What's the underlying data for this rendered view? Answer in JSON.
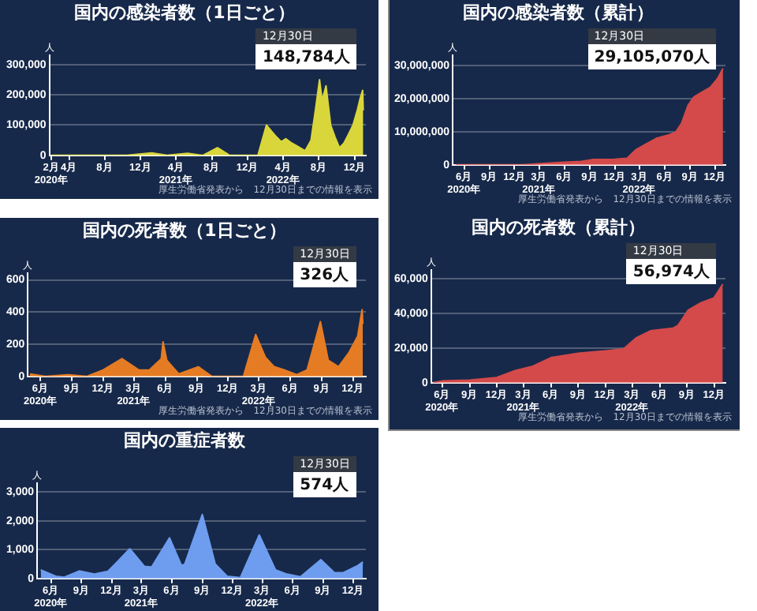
{
  "chart_data": [
    {
      "type": "area",
      "title": "国内の感染者数（1日ごと）",
      "ylabel": "人",
      "color": "#d9d63c",
      "x": [
        "2020-02-01",
        "2020-04-10",
        "2020-06-01",
        "2020-08-07",
        "2020-10-15",
        "2021-01-08",
        "2021-03-01",
        "2021-05-10",
        "2021-07-01",
        "2021-08-20",
        "2021-10-01",
        "2021-12-01",
        "2022-01-05",
        "2022-02-03",
        "2022-02-20",
        "2022-03-10",
        "2022-03-25",
        "2022-04-10",
        "2022-05-01",
        "2022-05-20",
        "2022-06-15",
        "2022-07-05",
        "2022-07-20",
        "2022-08-03",
        "2022-08-12",
        "2022-08-25",
        "2022-09-10",
        "2022-09-25",
        "2022-10-10",
        "2022-10-25",
        "2022-11-10",
        "2022-11-25",
        "2022-12-10",
        "2022-12-20",
        "2022-12-28",
        "2022-12-30"
      ],
      "values": [
        0,
        0,
        0,
        0,
        0,
        8000,
        0,
        6500,
        0,
        25000,
        0,
        0,
        0,
        100000,
        80000,
        60000,
        45000,
        55000,
        40000,
        30000,
        15000,
        50000,
        150000,
        250000,
        180000,
        230000,
        100000,
        60000,
        25000,
        40000,
        70000,
        100000,
        150000,
        190000,
        215000,
        148784
      ],
      "xlim": [
        "2020-01-25",
        "2023-01-08"
      ],
      "xticks": [
        {
          "value": "2020-02-01",
          "label": "2月\n2020年"
        },
        {
          "value": "2020-04-01",
          "label": "4月"
        },
        {
          "value": "2020-08-01",
          "label": "8月"
        },
        {
          "value": "2020-12-01",
          "label": "12月"
        },
        {
          "value": "2021-04-01",
          "label": "4月\n2021年"
        },
        {
          "value": "2021-08-01",
          "label": "8月"
        },
        {
          "value": "2021-12-01",
          "label": "12月"
        },
        {
          "value": "2022-04-01",
          "label": "4月\n2022年"
        },
        {
          "value": "2022-08-01",
          "label": "8月"
        },
        {
          "value": "2022-12-01",
          "label": "12月"
        }
      ],
      "ylim": [
        0,
        330000
      ],
      "yticks": [
        {
          "value": 0,
          "label": "0"
        },
        {
          "value": 100000,
          "label": "100,000"
        },
        {
          "value": 200000,
          "label": "200,000"
        },
        {
          "value": 300000,
          "label": "300,000"
        }
      ],
      "grid": "y",
      "annotations": [
        "12月30日\n148,784人",
        "厚生労働省発表から　12月30日までの情報を表示"
      ]
    },
    {
      "type": "area",
      "title": "国内の感染者数（累計）",
      "ylabel": "人",
      "color": "#d44a4a",
      "x": [
        "2020-05-01",
        "2020-09-01",
        "2021-01-01",
        "2021-04-01",
        "2021-06-01",
        "2021-08-01",
        "2021-09-15",
        "2021-12-01",
        "2022-01-15",
        "2022-02-15",
        "2022-03-15",
        "2022-05-01",
        "2022-06-15",
        "2022-07-10",
        "2022-08-01",
        "2022-08-25",
        "2022-09-15",
        "2022-10-15",
        "2022-11-15",
        "2022-12-10",
        "2022-12-30"
      ],
      "values": [
        0,
        0,
        0,
        500000,
        800000,
        1000000,
        1600000,
        1700000,
        2000000,
        4500000,
        5800000,
        8000000,
        9000000,
        9800000,
        12500000,
        18000000,
        20500000,
        22000000,
        23500000,
        26000000,
        29105070
      ],
      "xlim": [
        "2020-04-20",
        "2023-01-08"
      ],
      "xticks": [
        {
          "value": "2020-06-01",
          "label": "6月\n2020年"
        },
        {
          "value": "2020-09-01",
          "label": "9月"
        },
        {
          "value": "2020-12-01",
          "label": "12月"
        },
        {
          "value": "2021-03-01",
          "label": "3月\n2021年"
        },
        {
          "value": "2021-06-01",
          "label": "6月"
        },
        {
          "value": "2021-09-01",
          "label": "9月"
        },
        {
          "value": "2021-12-01",
          "label": "12月"
        },
        {
          "value": "2022-03-01",
          "label": "3月\n2022年"
        },
        {
          "value": "2022-06-01",
          "label": "6月"
        },
        {
          "value": "2022-09-01",
          "label": "9月"
        },
        {
          "value": "2022-12-01",
          "label": "12月"
        }
      ],
      "ylim": [
        0,
        33000000
      ],
      "yticks": [
        {
          "value": 0,
          "label": "0"
        },
        {
          "value": 10000000,
          "label": "10,000,000"
        },
        {
          "value": 20000000,
          "label": "20,000,000"
        },
        {
          "value": 30000000,
          "label": "30,000,000"
        }
      ],
      "grid": "y",
      "annotations": [
        "12月30日\n29,105,070人",
        "厚生労働省発表から　12月30日までの情報を表示"
      ]
    },
    {
      "type": "area",
      "title": "国内の死者数（1日ごと）",
      "ylabel": "人",
      "color": "#e57c24",
      "x": [
        "2020-05-01",
        "2020-06-15",
        "2020-08-20",
        "2020-10-15",
        "2020-12-01",
        "2021-01-25",
        "2021-03-15",
        "2021-04-15",
        "2021-05-20",
        "2021-05-25",
        "2021-06-05",
        "2021-07-10",
        "2021-09-05",
        "2021-10-15",
        "2021-12-01",
        "2022-01-15",
        "2022-02-20",
        "2022-03-20",
        "2022-04-15",
        "2022-05-15",
        "2022-06-20",
        "2022-07-20",
        "2022-08-10",
        "2022-08-28",
        "2022-09-20",
        "2022-10-20",
        "2022-11-20",
        "2022-12-15",
        "2022-12-28",
        "2022-12-30"
      ],
      "values": [
        15,
        0,
        10,
        0,
        40,
        110,
        40,
        40,
        110,
        215,
        100,
        15,
        60,
        0,
        0,
        0,
        260,
        120,
        60,
        40,
        10,
        40,
        200,
        340,
        100,
        60,
        150,
        250,
        415,
        326
      ],
      "xlim": [
        "2020-04-25",
        "2023-01-08"
      ],
      "xticks": [
        {
          "value": "2020-06-01",
          "label": "6月\n2020年"
        },
        {
          "value": "2020-09-01",
          "label": "9月"
        },
        {
          "value": "2020-12-01",
          "label": "12月"
        },
        {
          "value": "2021-03-01",
          "label": "3月\n2021年"
        },
        {
          "value": "2021-06-01",
          "label": "6月"
        },
        {
          "value": "2021-09-01",
          "label": "9月"
        },
        {
          "value": "2021-12-01",
          "label": "12月"
        },
        {
          "value": "2022-03-01",
          "label": "3月\n2022年"
        },
        {
          "value": "2022-06-01",
          "label": "6月"
        },
        {
          "value": "2022-09-01",
          "label": "9月"
        },
        {
          "value": "2022-12-01",
          "label": "12月"
        }
      ],
      "ylim": [
        0,
        640
      ],
      "yticks": [
        0,
        200,
        400,
        600
      ],
      "grid": "y",
      "annotations": [
        "12月30日\n326人",
        "厚生労働省発表から　12月30日までの情報を表示"
      ]
    },
    {
      "type": "area",
      "title": "国内の死者数（累計）",
      "ylabel": "人",
      "color": "#d44a4a",
      "x": [
        "2020-05-01",
        "2020-06-01",
        "2020-09-01",
        "2020-12-01",
        "2021-02-01",
        "2021-04-01",
        "2021-06-01",
        "2021-09-01",
        "2021-12-01",
        "2022-01-31",
        "2022-03-15",
        "2022-05-01",
        "2022-07-15",
        "2022-08-01",
        "2022-09-05",
        "2022-10-15",
        "2022-11-30",
        "2022-12-30"
      ],
      "values": [
        0,
        1000,
        1500,
        3000,
        7000,
        9500,
        14500,
        17000,
        18400,
        19500,
        26000,
        30000,
        31500,
        33000,
        42000,
        46000,
        49000,
        56974
      ],
      "xlim": [
        "2020-04-25",
        "2023-01-08"
      ],
      "xticks": [
        {
          "value": "2020-06-01",
          "label": "6月\n2020年"
        },
        {
          "value": "2020-09-01",
          "label": "9月"
        },
        {
          "value": "2020-12-01",
          "label": "12月"
        },
        {
          "value": "2021-03-01",
          "label": "3月\n2021年"
        },
        {
          "value": "2021-06-01",
          "label": "6月"
        },
        {
          "value": "2021-09-01",
          "label": "9月"
        },
        {
          "value": "2021-12-01",
          "label": "12月"
        },
        {
          "value": "2022-03-01",
          "label": "3月\n2022年"
        },
        {
          "value": "2022-06-01",
          "label": "6月"
        },
        {
          "value": "2022-09-01",
          "label": "9月"
        },
        {
          "value": "2022-12-01",
          "label": "12月"
        }
      ],
      "ylim": [
        0,
        65000
      ],
      "yticks": [
        {
          "value": 0,
          "label": "0"
        },
        {
          "value": 20000,
          "label": "20,000"
        },
        {
          "value": 40000,
          "label": "40,000"
        },
        {
          "value": 60000,
          "label": "60,000"
        }
      ],
      "grid": "y",
      "annotations": [
        "12月30日\n56,974人",
        "厚生労働省発表から　12月30日までの情報を表示"
      ]
    },
    {
      "type": "area",
      "title": "国内の重症者数",
      "ylabel": "人",
      "color": "#6e9df0",
      "x": [
        "2020-05-01",
        "2020-06-15",
        "2020-07-10",
        "2020-08-25",
        "2020-10-10",
        "2020-11-20",
        "2020-12-20",
        "2021-01-25",
        "2021-03-10",
        "2021-04-01",
        "2021-05-25",
        "2021-06-30",
        "2021-07-10",
        "2021-09-01",
        "2021-10-10",
        "2021-11-15",
        "2021-12-25",
        "2022-02-20",
        "2022-04-10",
        "2022-05-15",
        "2022-06-25",
        "2022-08-25",
        "2022-10-05",
        "2022-11-01",
        "2022-12-15",
        "2022-12-30"
      ],
      "values": [
        300,
        80,
        40,
        260,
        150,
        250,
        600,
        1030,
        420,
        400,
        1410,
        450,
        500,
        2220,
        500,
        80,
        30,
        1510,
        300,
        150,
        60,
        650,
        200,
        200,
        450,
        574
      ],
      "xlim": [
        "2020-04-20",
        "2023-01-08"
      ],
      "xticks": [
        {
          "value": "2020-06-01",
          "label": "6月\n2020年"
        },
        {
          "value": "2020-09-01",
          "label": "9月"
        },
        {
          "value": "2020-12-01",
          "label": "12月"
        },
        {
          "value": "2021-03-01",
          "label": "3月\n2021年"
        },
        {
          "value": "2021-06-01",
          "label": "6月"
        },
        {
          "value": "2021-09-01",
          "label": "9月"
        },
        {
          "value": "2021-12-01",
          "label": "12月"
        },
        {
          "value": "2022-03-01",
          "label": "3月\n2022年"
        },
        {
          "value": "2022-06-01",
          "label": "6月"
        },
        {
          "value": "2022-09-01",
          "label": "9月"
        },
        {
          "value": "2022-12-01",
          "label": "12月"
        }
      ],
      "ylim": [
        0,
        3300
      ],
      "yticks": [
        {
          "value": 0,
          "label": "0"
        },
        {
          "value": 1000,
          "label": "1,000"
        },
        {
          "value": 2000,
          "label": "2,000"
        },
        {
          "value": 3000,
          "label": "3,000"
        }
      ],
      "grid": "y",
      "annotations": [
        "12月30日\n574人"
      ]
    }
  ]
}
